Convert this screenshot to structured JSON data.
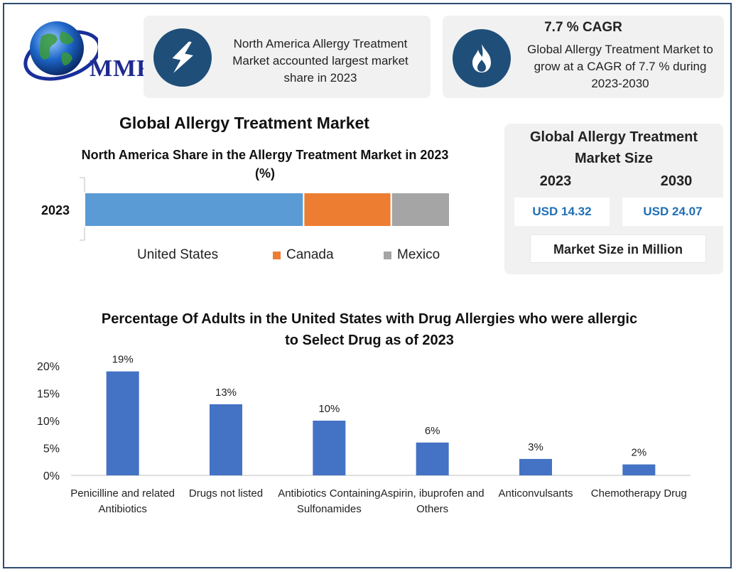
{
  "logo": {
    "text": "MMR"
  },
  "card_na": {
    "icon": "lightning-icon",
    "text": "North America Allergy Treatment Market accounted largest market share in 2023"
  },
  "card_cagr": {
    "icon": "flame-icon",
    "title": "7.7 % CAGR",
    "text": "Global Allergy Treatment Market to grow at a CAGR of 7.7 % during 2023-2030"
  },
  "main_title": "Global Allergy Treatment Market",
  "market_size": {
    "title": "Global Allergy Treatment Market Size",
    "year_a": "2023",
    "year_b": "2030",
    "value_a": "USD 14.32",
    "value_b": "USD 24.07",
    "note": "Market Size in Million"
  },
  "colors": {
    "navy": "#1f4e79",
    "us": "#5b9bd5",
    "canada": "#ed7d31",
    "mexico": "#a5a5a5",
    "bar": "#4472c4",
    "value_text": "#1f6fb5"
  },
  "chart_data": [
    {
      "type": "bar",
      "orientation": "horizontal-stacked",
      "title": "North America Share in the Allergy Treatment Market in 2023 (%)",
      "categories": [
        "2023"
      ],
      "series": [
        {
          "name": "United States",
          "values": [
            60
          ],
          "color": "#5b9bd5"
        },
        {
          "name": "Canada",
          "values": [
            24
          ],
          "color": "#ed7d31"
        },
        {
          "name": "Mexico",
          "values": [
            16
          ],
          "color": "#a5a5a5"
        }
      ],
      "xlim": [
        0,
        100
      ],
      "legend": "bottom"
    },
    {
      "type": "bar",
      "title": "Percentage Of Adults in the United States with Drug Allergies who were allergic to Select Drug as of 2023",
      "categories": [
        "Penicilline and related Antibiotics",
        "Drugs not listed",
        "Antibiotics Containing Sulfonamides",
        "Aspirin, ibuprofen and Others",
        "Anticonvulsants",
        "Chemotherapy Drug"
      ],
      "values": [
        19,
        13,
        10,
        6,
        3,
        2
      ],
      "data_labels": [
        "19%",
        "13%",
        "10%",
        "6%",
        "3%",
        "2%"
      ],
      "ylim": [
        0,
        20
      ],
      "yticks": [
        "0%",
        "5%",
        "10%",
        "15%",
        "20%"
      ],
      "grid": false,
      "color": "#4472c4"
    }
  ]
}
